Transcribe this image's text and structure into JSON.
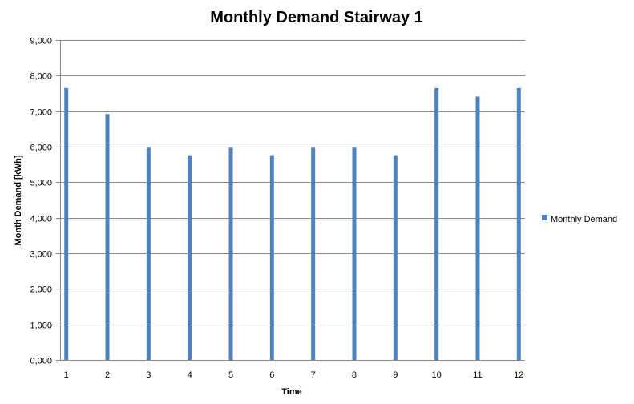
{
  "chart_data": {
    "type": "bar",
    "title": "Monthly Demand Stairway 1",
    "xlabel": "Time",
    "ylabel": "Month Demand [kWh]",
    "x": [
      1,
      2,
      3,
      4,
      5,
      6,
      7,
      8,
      9,
      10,
      11,
      12
    ],
    "x_tick_labels": [
      "1",
      "2",
      "3",
      "4",
      "5",
      "6",
      "7",
      "8",
      "9",
      "10",
      "11",
      "12"
    ],
    "series": [
      {
        "name": "Monthly Demand",
        "values": [
          7650,
          6920,
          5970,
          5760,
          5970,
          5760,
          5970,
          5970,
          5760,
          7650,
          7410,
          7650
        ]
      }
    ],
    "ylim": [
      0,
      9000
    ],
    "y_ticks": [
      0,
      1000,
      2000,
      3000,
      4000,
      5000,
      6000,
      7000,
      8000,
      9000
    ],
    "y_tick_labels": [
      "0,000",
      "1,000",
      "2,000",
      "3,000",
      "4,000",
      "5,000",
      "6,000",
      "7,000",
      "8,000",
      "9,000"
    ],
    "grid": true,
    "legend_position": "right",
    "colors": {
      "bar": "#4f81bd",
      "grid": "#888888",
      "axis": "#888888",
      "text": "#000000"
    }
  }
}
